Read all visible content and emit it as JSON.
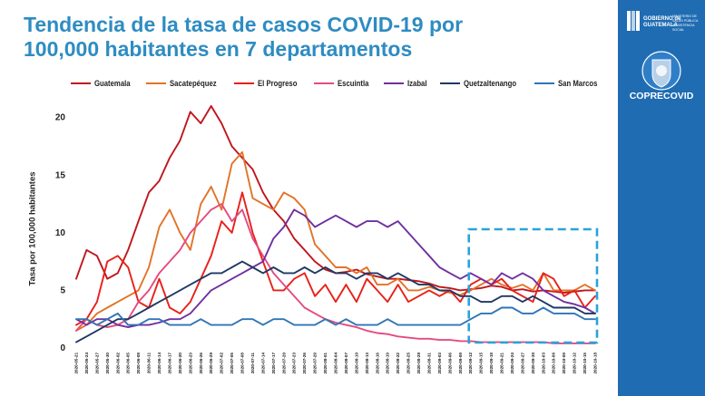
{
  "title": {
    "line1": "Tendencia de la tasa de casos COVID-19 por",
    "line2": "100,000 habitantes en 7 departamentos"
  },
  "sidebar": {
    "gov_name_line1": "GOBIERNO de",
    "gov_name_line2": "GUATEMALA",
    "ministry": "MINISTERIO DE SALUD PÚBLICA Y ASISTENCIA SOCIAL",
    "brand": "COPRECOVID"
  },
  "chart_data": {
    "type": "line",
    "title": "Tendencia de la tasa de casos COVID-19 por 100,000 habitantes en 7 departamentos",
    "xlabel": "",
    "ylabel": "Tasa por 100,000 habitantes",
    "ylim": [
      0,
      21
    ],
    "yticks": [
      0,
      5,
      10,
      15,
      20
    ],
    "legend_position": "top",
    "highlight": {
      "from": "2020-09-12",
      "to": "2020-10-18",
      "style": "dashed box"
    },
    "x_ticks": [
      "2020-05-21",
      "2020-05-24",
      "2020-05-27",
      "2020-05-30",
      "2020-06-02",
      "2020-06-05",
      "2020-06-08",
      "2020-06-11",
      "2020-06-14",
      "2020-06-17",
      "2020-06-20",
      "2020-06-23",
      "2020-06-26",
      "2020-06-29",
      "2020-07-02",
      "2020-07-05",
      "2020-07-08",
      "2020-07-11",
      "2020-07-14",
      "2020-07-17",
      "2020-07-20",
      "2020-07-23",
      "2020-07-26",
      "2020-07-29",
      "2020-08-01",
      "2020-08-04",
      "2020-08-07",
      "2020-08-10",
      "2020-08-13",
      "2020-08-16",
      "2020-08-19",
      "2020-08-22",
      "2020-08-25",
      "2020-08-28",
      "2020-08-31",
      "2020-09-03",
      "2020-09-06",
      "2020-09-09",
      "2020-09-12",
      "2020-09-15",
      "2020-09-18",
      "2020-09-21",
      "2020-09-24",
      "2020-09-27",
      "2020-09-30",
      "2020-10-03",
      "2020-10-06",
      "2020-10-09",
      "2020-10-12",
      "2020-10-15",
      "2020-10-18"
    ],
    "series": [
      {
        "name": "Guatemala",
        "color": "#c0161c",
        "values": [
          6.0,
          8.5,
          8.0,
          6.0,
          6.5,
          8.5,
          11.0,
          13.5,
          14.5,
          16.5,
          18.0,
          20.5,
          19.5,
          21.0,
          19.5,
          17.5,
          16.5,
          15.5,
          13.5,
          12.0,
          11.0,
          9.5,
          8.5,
          7.5,
          6.8,
          6.5,
          6.6,
          6.8,
          6.4,
          6.2,
          6.0,
          6.0,
          5.9,
          5.8,
          5.6,
          5.3,
          5.2,
          5.0,
          5.1,
          5.2,
          5.4,
          5.3,
          5.0,
          5.1,
          4.9,
          5.0,
          4.9,
          4.8,
          4.9,
          5.0,
          5.0
        ]
      },
      {
        "name": "Sacatepéquez",
        "color": "#e27327",
        "values": [
          1.5,
          2.0,
          3.0,
          3.5,
          4.0,
          4.5,
          5.0,
          7.0,
          10.5,
          12.0,
          10.0,
          8.5,
          12.5,
          14.0,
          12.0,
          16.0,
          17.0,
          13.0,
          12.5,
          12.0,
          13.5,
          13.0,
          12.0,
          9.0,
          8.0,
          7.0,
          7.0,
          6.5,
          7.0,
          5.5,
          5.5,
          6.0,
          5.0,
          5.0,
          5.3,
          5.0,
          4.8,
          4.6,
          5.0,
          5.5,
          6.0,
          5.5,
          5.2,
          5.5,
          5.0,
          6.5,
          5.0,
          5.0,
          5.0,
          5.5,
          5.0
        ]
      },
      {
        "name": "El Progreso",
        "color": "#e8201a",
        "values": [
          2.0,
          2.5,
          4.0,
          7.5,
          8.0,
          7.0,
          4.0,
          3.5,
          6.0,
          3.5,
          3.0,
          4.0,
          6.0,
          8.0,
          11.0,
          10.0,
          13.5,
          10.0,
          7.5,
          5.0,
          5.0,
          6.0,
          6.5,
          4.5,
          5.5,
          4.0,
          5.5,
          4.0,
          6.0,
          5.0,
          4.0,
          5.5,
          4.0,
          4.5,
          5.0,
          4.5,
          5.0,
          4.0,
          5.5,
          6.0,
          5.5,
          6.0,
          5.0,
          4.5,
          4.0,
          6.5,
          6.0,
          4.5,
          5.0,
          3.5,
          4.5
        ]
      },
      {
        "name": "Escuintla",
        "color": "#e44b80",
        "values": [
          1.5,
          2.5,
          2.0,
          1.8,
          2.0,
          2.5,
          4.0,
          5.0,
          6.5,
          7.5,
          8.5,
          10.0,
          11.0,
          12.0,
          12.5,
          11.0,
          12.0,
          9.5,
          8.0,
          6.5,
          5.5,
          4.5,
          3.5,
          3.0,
          2.5,
          2.2,
          2.0,
          1.8,
          1.5,
          1.3,
          1.2,
          1.0,
          0.9,
          0.8,
          0.8,
          0.7,
          0.7,
          0.6,
          0.6,
          0.5,
          0.5,
          0.5,
          0.5,
          0.5,
          0.5,
          0.5,
          0.4,
          0.4,
          0.4,
          0.4,
          0.4
        ]
      },
      {
        "name": "Izabal",
        "color": "#7030a0",
        "values": [
          2.5,
          2.0,
          2.5,
          2.5,
          2.0,
          1.8,
          2.0,
          2.0,
          2.2,
          2.5,
          2.5,
          3.0,
          4.0,
          5.0,
          5.5,
          6.0,
          6.5,
          7.0,
          7.5,
          9.5,
          10.5,
          12.0,
          11.5,
          10.5,
          11.0,
          11.5,
          11.0,
          10.5,
          11.0,
          11.0,
          10.5,
          11.0,
          10.0,
          9.0,
          8.0,
          7.0,
          6.5,
          6.0,
          6.5,
          6.0,
          5.5,
          6.5,
          6.0,
          6.5,
          6.0,
          5.0,
          4.5,
          4.0,
          3.8,
          3.5,
          3.0
        ]
      },
      {
        "name": "Quetzaltenango",
        "color": "#1f3864",
        "values": [
          0.5,
          1.0,
          1.5,
          2.0,
          2.5,
          2.5,
          3.0,
          3.5,
          4.0,
          4.5,
          5.0,
          5.5,
          6.0,
          6.5,
          6.5,
          7.0,
          7.5,
          7.0,
          6.5,
          7.0,
          6.5,
          6.5,
          7.0,
          6.5,
          7.0,
          6.5,
          6.5,
          6.0,
          6.5,
          6.5,
          6.0,
          6.5,
          6.0,
          5.5,
          5.5,
          5.0,
          5.0,
          4.5,
          4.5,
          4.0,
          4.0,
          4.5,
          4.5,
          4.0,
          4.5,
          4.0,
          3.5,
          3.5,
          3.5,
          3.0,
          3.0
        ]
      },
      {
        "name": "San Marcos",
        "color": "#2e75b6",
        "values": [
          2.5,
          2.5,
          2.0,
          2.5,
          3.0,
          2.0,
          2.0,
          2.5,
          2.5,
          2.0,
          2.0,
          2.0,
          2.5,
          2.0,
          2.0,
          2.0,
          2.5,
          2.5,
          2.0,
          2.5,
          2.5,
          2.0,
          2.0,
          2.0,
          2.5,
          2.0,
          2.5,
          2.0,
          2.0,
          2.0,
          2.5,
          2.0,
          2.0,
          2.0,
          2.0,
          2.0,
          2.0,
          2.0,
          2.5,
          3.0,
          3.0,
          3.5,
          3.5,
          3.0,
          3.0,
          3.5,
          3.0,
          3.0,
          3.0,
          2.5,
          2.5
        ]
      }
    ]
  }
}
